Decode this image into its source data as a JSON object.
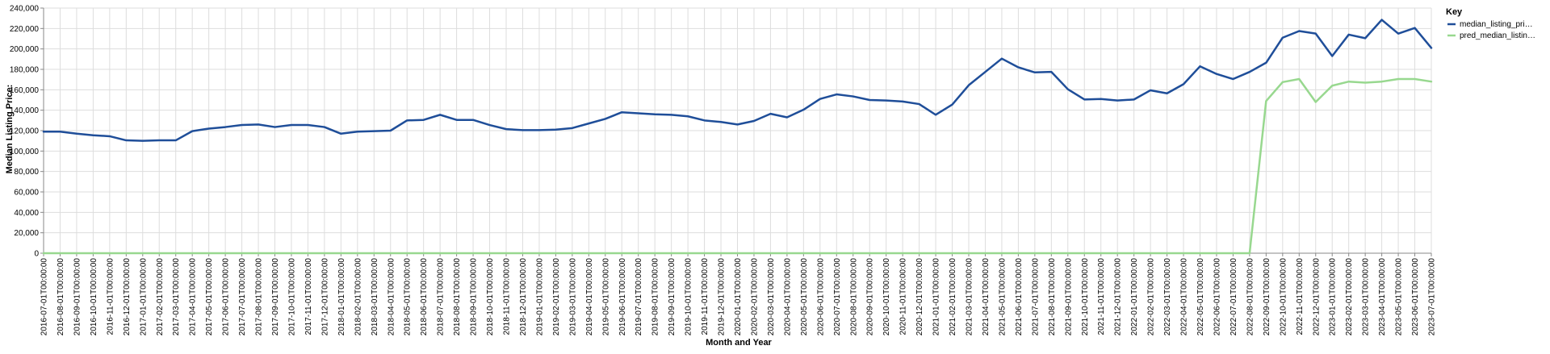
{
  "chart_data": {
    "type": "line",
    "xlabel": "Month and Year",
    "ylabel": "Median Listing Price:",
    "ylim": [
      0,
      240000
    ],
    "yticks": [
      0,
      20000,
      40000,
      60000,
      80000,
      100000,
      120000,
      140000,
      160000,
      180000,
      200000,
      220000,
      240000
    ],
    "ytick_labels": [
      "0",
      "20,000",
      "40,000",
      "60,000",
      "80,000",
      "100,000",
      "120,000",
      "140,000",
      "160,000",
      "180,000",
      "200,000",
      "220,000",
      "240,000"
    ],
    "grid": true,
    "legend": {
      "title": "Key",
      "placement": "right",
      "entries": [
        "median_listing_pri…",
        "pred_median_listin…"
      ]
    },
    "categories": [
      "2016-07-01T00:00:00",
      "2016-08-01T00:00:00",
      "2016-09-01T00:00:00",
      "2016-10-01T00:00:00",
      "2016-11-01T00:00:00",
      "2016-12-01T00:00:00",
      "2017-01-01T00:00:00",
      "2017-02-01T00:00:00",
      "2017-03-01T00:00:00",
      "2017-04-01T00:00:00",
      "2017-05-01T00:00:00",
      "2017-06-01T00:00:00",
      "2017-07-01T00:00:00",
      "2017-08-01T00:00:00",
      "2017-09-01T00:00:00",
      "2017-10-01T00:00:00",
      "2017-11-01T00:00:00",
      "2017-12-01T00:00:00",
      "2018-01-01T00:00:00",
      "2018-02-01T00:00:00",
      "2018-03-01T00:00:00",
      "2018-04-01T00:00:00",
      "2018-05-01T00:00:00",
      "2018-06-01T00:00:00",
      "2018-07-01T00:00:00",
      "2018-08-01T00:00:00",
      "2018-09-01T00:00:00",
      "2018-10-01T00:00:00",
      "2018-11-01T00:00:00",
      "2018-12-01T00:00:00",
      "2019-01-01T00:00:00",
      "2019-02-01T00:00:00",
      "2019-03-01T00:00:00",
      "2019-04-01T00:00:00",
      "2019-05-01T00:00:00",
      "2019-06-01T00:00:00",
      "2019-07-01T00:00:00",
      "2019-08-01T00:00:00",
      "2019-09-01T00:00:00",
      "2019-10-01T00:00:00",
      "2019-11-01T00:00:00",
      "2019-12-01T00:00:00",
      "2020-01-01T00:00:00",
      "2020-02-01T00:00:00",
      "2020-03-01T00:00:00",
      "2020-04-01T00:00:00",
      "2020-05-01T00:00:00",
      "2020-06-01T00:00:00",
      "2020-07-01T00:00:00",
      "2020-08-01T00:00:00",
      "2020-09-01T00:00:00",
      "2020-10-01T00:00:00",
      "2020-11-01T00:00:00",
      "2020-12-01T00:00:00",
      "2021-01-01T00:00:00",
      "2021-02-01T00:00:00",
      "2021-03-01T00:00:00",
      "2021-04-01T00:00:00",
      "2021-05-01T00:00:00",
      "2021-06-01T00:00:00",
      "2021-07-01T00:00:00",
      "2021-08-01T00:00:00",
      "2021-09-01T00:00:00",
      "2021-10-01T00:00:00",
      "2021-11-01T00:00:00",
      "2021-12-01T00:00:00",
      "2022-01-01T00:00:00",
      "2022-02-01T00:00:00",
      "2022-03-01T00:00:00",
      "2022-04-01T00:00:00",
      "2022-05-01T00:00:00",
      "2022-06-01T00:00:00",
      "2022-07-01T00:00:00",
      "2022-08-01T00:00:00",
      "2022-09-01T00:00:00",
      "2022-10-01T00:00:00",
      "2022-11-01T00:00:00",
      "2022-12-01T00:00:00",
      "2023-01-01T00:00:00",
      "2023-02-01T00:00:00",
      "2023-03-01T00:00:00",
      "2023-04-01T00:00:00",
      "2023-05-01T00:00:00",
      "2023-06-01T00:00:00",
      "2023-07-01T00:00:00"
    ],
    "series": [
      {
        "name": "median_listing_pri…",
        "color": "#1f4e99",
        "values": [
          119000,
          119000,
          117000,
          115500,
          114500,
          110500,
          110000,
          110500,
          110500,
          119500,
          122000,
          123500,
          125500,
          126000,
          123500,
          125500,
          125500,
          123500,
          117000,
          119000,
          119500,
          120000,
          130000,
          130500,
          135500,
          130500,
          130500,
          125500,
          121500,
          120500,
          120500,
          121000,
          122500,
          127000,
          131500,
          138000,
          137000,
          136000,
          135500,
          134000,
          130000,
          128500,
          126000,
          129500,
          136500,
          133000,
          140500,
          151000,
          155500,
          153500,
          150000,
          149500,
          148500,
          146000,
          135500,
          145500,
          164500,
          177500,
          190500,
          182000,
          177000,
          177500,
          160500,
          150500,
          151000,
          149500,
          150500,
          159500,
          156500,
          165500,
          183000,
          175500,
          170500,
          177500,
          186500,
          211000,
          217500,
          215000,
          193000,
          214000,
          210500,
          228500,
          215000,
          220500,
          201000
        ]
      },
      {
        "name": "pred_median_listin…",
        "color": "#98d88f",
        "values": [
          0,
          0,
          0,
          0,
          0,
          0,
          0,
          0,
          0,
          0,
          0,
          0,
          0,
          0,
          0,
          0,
          0,
          0,
          0,
          0,
          0,
          0,
          0,
          0,
          0,
          0,
          0,
          0,
          0,
          0,
          0,
          0,
          0,
          0,
          0,
          0,
          0,
          0,
          0,
          0,
          0,
          0,
          0,
          0,
          0,
          0,
          0,
          0,
          0,
          0,
          0,
          0,
          0,
          0,
          0,
          0,
          0,
          0,
          0,
          0,
          0,
          0,
          0,
          0,
          0,
          0,
          0,
          0,
          0,
          0,
          0,
          0,
          0,
          0,
          149000,
          167500,
          170500,
          148000,
          164000,
          168000,
          167000,
          168000,
          170500,
          170500,
          168000
        ]
      }
    ]
  }
}
